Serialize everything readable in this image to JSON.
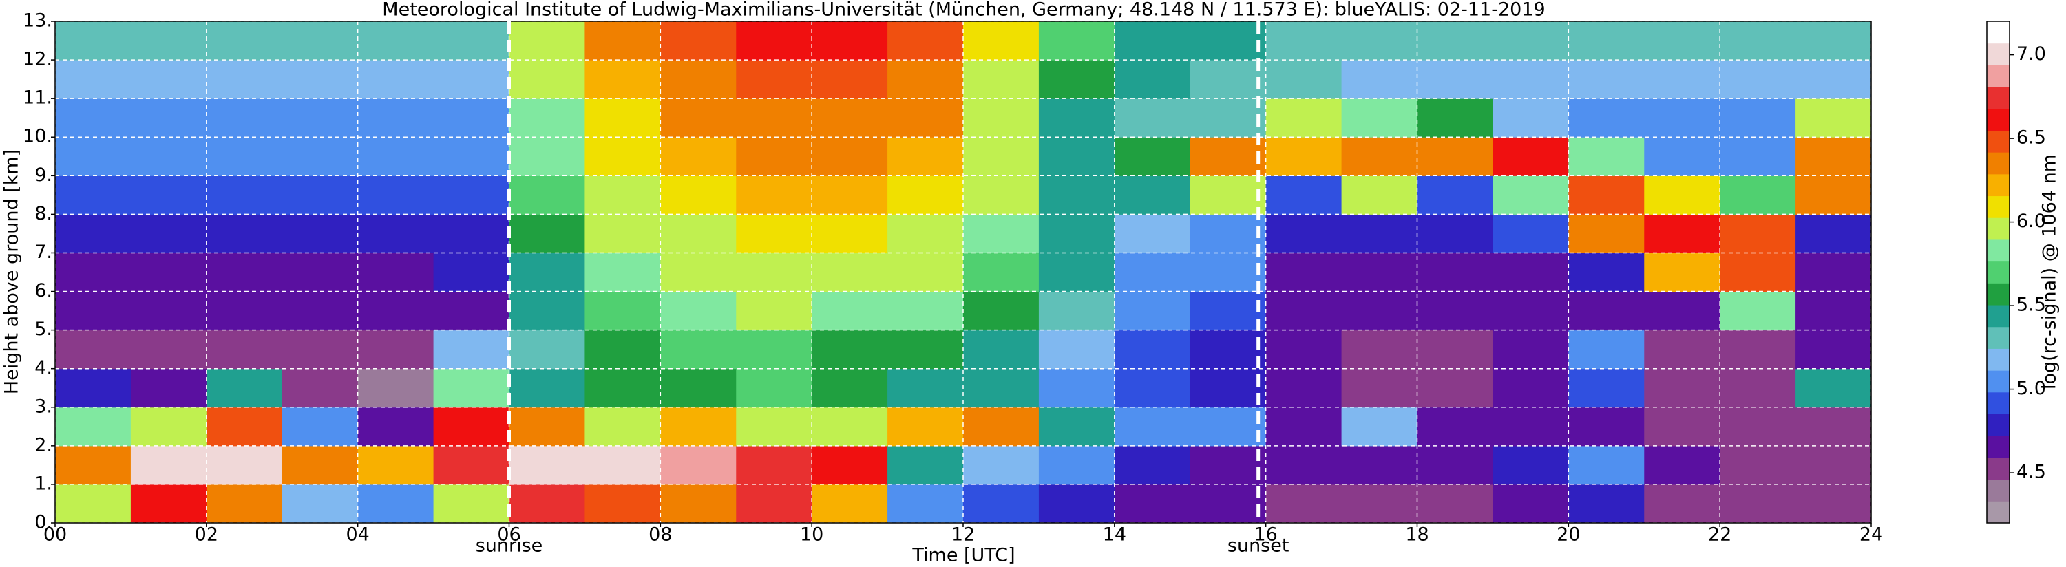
{
  "chart_data": {
    "type": "heatmap",
    "title": "Meteorological Institute of Ludwig-Maximilians-Universität (München, Germany; 48.148 N / 11.573 E):    blueYALIS: 02-11-2019",
    "x_label": "Time [UTC]",
    "y_label": "Height above ground [km]",
    "colorbar_label": "log(rc-signal) @ 1064 nm",
    "xlim": [
      0,
      24
    ],
    "ylim": [
      0,
      13
    ],
    "xticks": [
      {
        "value": 0,
        "label": "00"
      },
      {
        "value": 2,
        "label": "02"
      },
      {
        "value": 4,
        "label": "04"
      },
      {
        "value": 6,
        "label": "06"
      },
      {
        "value": 8,
        "label": "08"
      },
      {
        "value": 10,
        "label": "10"
      },
      {
        "value": 12,
        "label": "12"
      },
      {
        "value": 14,
        "label": "14"
      },
      {
        "value": 16,
        "label": "16"
      },
      {
        "value": 18,
        "label": "18"
      },
      {
        "value": 20,
        "label": "20"
      },
      {
        "value": 22,
        "label": "22"
      },
      {
        "value": 24,
        "label": "24"
      }
    ],
    "yticks": [
      {
        "value": 0,
        "label": "0."
      },
      {
        "value": 1,
        "label": "1."
      },
      {
        "value": 2,
        "label": "2."
      },
      {
        "value": 3,
        "label": "3."
      },
      {
        "value": 4,
        "label": "4."
      },
      {
        "value": 5,
        "label": "5."
      },
      {
        "value": 6,
        "label": "6."
      },
      {
        "value": 7,
        "label": "7."
      },
      {
        "value": 8,
        "label": "8."
      },
      {
        "value": 9,
        "label": "9."
      },
      {
        "value": 10,
        "label": "10."
      },
      {
        "value": 11,
        "label": "11."
      },
      {
        "value": 12,
        "label": "12."
      },
      {
        "value": 13,
        "label": "13."
      }
    ],
    "clim": [
      4.2,
      7.2
    ],
    "cticks": [
      4.5,
      {
        "value": 5,
        "label": "5.0"
      },
      5.5,
      {
        "value": 6,
        "label": "6.0"
      },
      6.5,
      {
        "value": 7,
        "label": "7.0"
      }
    ],
    "colormap": [
      "#a898a8",
      "#9a7a9a",
      "#8a3a8a",
      "#5a10a0",
      "#3020c0",
      "#3050e0",
      "#5090f0",
      "#80b8f0",
      "#60c0b8",
      "#20a090",
      "#20a040",
      "#50d070",
      "#80e8a0",
      "#c0f050",
      "#f0e000",
      "#f8b000",
      "#f08000",
      "#f05010",
      "#f01010",
      "#e83030",
      "#f0a0a0",
      "#f0d8d8",
      "#ffffff"
    ],
    "grid": true,
    "annotations": [
      {
        "text": "sunrise",
        "x": 6.0
      },
      {
        "text": "sunset",
        "x": 15.9
      }
    ],
    "z": [
      [
        5.9,
        6.6,
        6.4,
        5.2,
        5.0,
        6.0,
        6.8,
        6.5,
        6.4,
        6.8,
        6.2,
        5.0,
        4.9,
        4.8,
        4.7,
        4.6,
        4.5,
        4.5,
        4.5,
        4.6,
        4.8,
        4.5,
        4.5,
        4.5
      ],
      [
        6.3,
        7.0,
        7.0,
        6.4,
        6.2,
        6.8,
        7.0,
        7.0,
        6.9,
        6.8,
        6.6,
        5.4,
        5.2,
        5.0,
        4.8,
        4.7,
        4.6,
        4.6,
        4.6,
        4.8,
        5.0,
        4.6,
        4.5,
        4.5
      ],
      [
        5.8,
        6.0,
        6.5,
        5.0,
        4.7,
        6.6,
        6.4,
        6.0,
        6.2,
        6.0,
        6.0,
        6.2,
        6.4,
        5.4,
        5.0,
        5.0,
        4.7,
        5.2,
        4.7,
        4.6,
        4.6,
        4.5,
        4.5,
        4.5
      ],
      [
        4.8,
        4.6,
        5.5,
        4.5,
        4.4,
        5.8,
        5.4,
        5.6,
        5.6,
        5.7,
        5.6,
        5.5,
        5.4,
        5.1,
        4.9,
        4.8,
        4.6,
        4.5,
        4.5,
        4.6,
        4.9,
        4.5,
        4.5,
        5.4
      ],
      [
        4.5,
        4.5,
        4.5,
        4.5,
        4.5,
        5.2,
        5.3,
        5.6,
        5.7,
        5.7,
        5.6,
        5.6,
        5.5,
        5.2,
        4.9,
        4.8,
        4.6,
        4.5,
        4.5,
        4.6,
        5.0,
        4.5,
        4.5,
        4.6
      ],
      [
        4.6,
        4.6,
        4.6,
        4.6,
        4.6,
        4.7,
        5.4,
        5.7,
        5.8,
        5.9,
        5.8,
        5.8,
        5.6,
        5.3,
        5.0,
        4.9,
        4.6,
        4.6,
        4.6,
        4.6,
        4.7,
        4.6,
        5.8,
        4.7
      ],
      [
        4.7,
        4.7,
        4.7,
        4.7,
        4.7,
        4.8,
        5.5,
        5.8,
        5.9,
        6.0,
        6.0,
        5.9,
        5.7,
        5.4,
        5.1,
        5.0,
        4.7,
        4.7,
        4.7,
        4.7,
        4.8,
        6.2,
        6.5,
        4.7
      ],
      [
        4.8,
        4.8,
        4.8,
        4.8,
        4.8,
        4.8,
        5.6,
        5.9,
        6.0,
        6.1,
        6.1,
        6.0,
        5.8,
        5.4,
        5.2,
        5.0,
        4.8,
        4.8,
        4.8,
        4.9,
        6.3,
        6.6,
        6.5,
        4.8
      ],
      [
        4.9,
        4.9,
        4.9,
        4.9,
        4.9,
        4.9,
        5.7,
        6.0,
        6.1,
        6.2,
        6.2,
        6.1,
        5.9,
        5.5,
        5.4,
        5.9,
        4.9,
        6.0,
        4.9,
        5.8,
        6.5,
        6.1,
        5.7,
        6.4
      ],
      [
        5.0,
        5.0,
        5.0,
        5.0,
        5.0,
        5.0,
        5.8,
        6.1,
        6.2,
        6.3,
        6.3,
        6.2,
        5.9,
        5.5,
        5.6,
        6.3,
        6.2,
        6.4,
        6.3,
        6.6,
        5.8,
        5.1,
        5.0,
        6.3
      ],
      [
        5.1,
        5.1,
        5.1,
        5.1,
        5.1,
        5.1,
        5.8,
        6.1,
        6.3,
        6.4,
        6.4,
        6.3,
        6.0,
        5.5,
        5.3,
        5.3,
        6.0,
        5.8,
        5.6,
        5.2,
        5.1,
        5.1,
        5.1,
        5.9
      ],
      [
        5.2,
        5.2,
        5.2,
        5.2,
        5.2,
        5.2,
        5.9,
        6.2,
        6.4,
        6.5,
        6.5,
        6.4,
        6.0,
        5.6,
        5.4,
        5.3,
        5.3,
        5.2,
        5.2,
        5.2,
        5.2,
        5.2,
        5.2,
        5.2
      ],
      [
        5.3,
        5.3,
        5.3,
        5.3,
        5.3,
        5.3,
        6.0,
        6.3,
        6.5,
        6.6,
        6.6,
        6.5,
        6.1,
        5.7,
        5.5,
        5.4,
        5.3,
        5.3,
        5.3,
        5.3,
        5.3,
        5.3,
        5.3,
        5.3
      ]
    ]
  }
}
